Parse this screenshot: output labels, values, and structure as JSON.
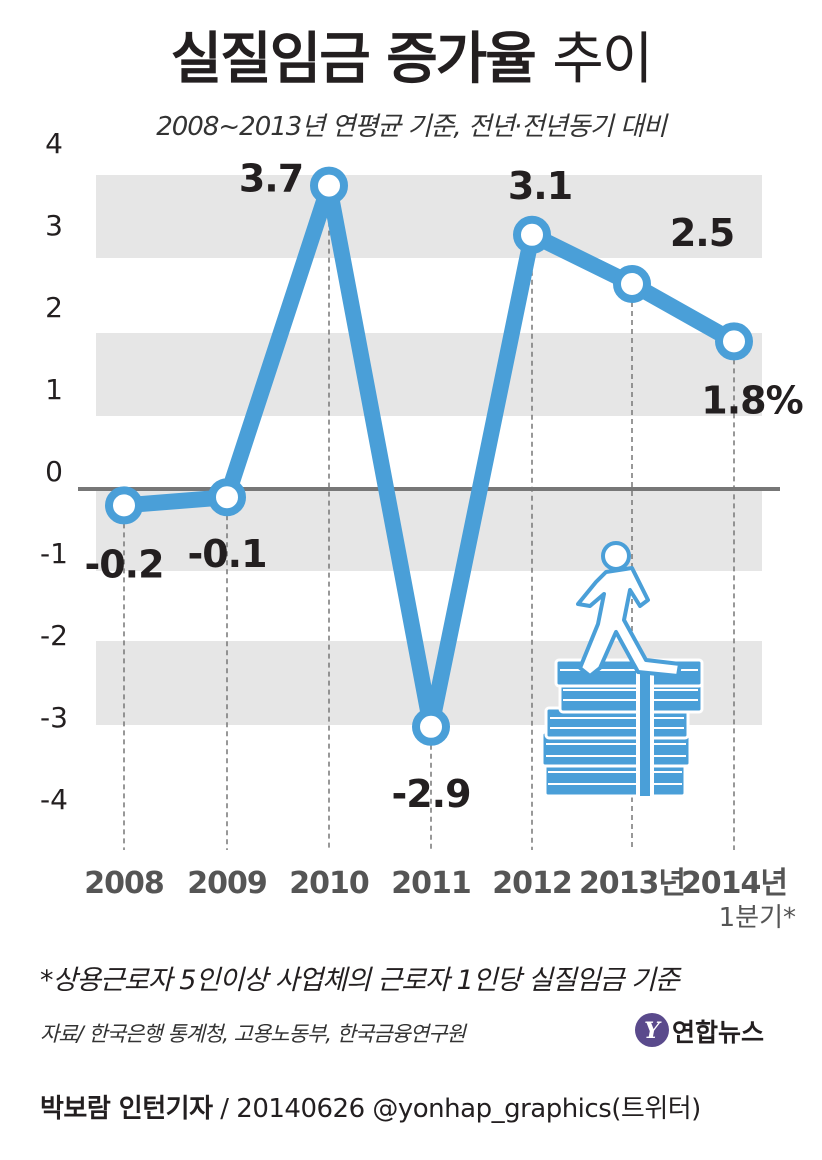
{
  "title": {
    "bold": "실질임금 증가율",
    "light": "추이"
  },
  "subtitle": "2008~2013년 연평균 기준, 전년·전년동기 대비",
  "chart_data": {
    "type": "line",
    "categories": [
      "2008",
      "2009",
      "2010",
      "2011",
      "2012",
      "2013년",
      "2014년"
    ],
    "category_sublabel": "1분기*",
    "values": [
      -0.2,
      -0.1,
      3.7,
      -2.9,
      3.1,
      2.5,
      1.8
    ],
    "data_labels": [
      "-0.2",
      "-0.1",
      "3.7",
      "-2.9",
      "3.1",
      "2.5",
      "1.8%"
    ],
    "y_ticks": [
      "4",
      "3",
      "2",
      "1",
      "0",
      "-1",
      "-2",
      "-3",
      "-4"
    ],
    "ylim": [
      -4,
      4
    ],
    "line_color": "#4a9fd8",
    "band_color": "#e6e6e6",
    "zero_line_color": "#777777"
  },
  "footnote": "*상용근로자 5인이상 사업체의 근로자 1인당 실질임금 기준",
  "source": "자료/ 한국은행 통계청, 고용노동부, 한국금융연구원",
  "logo": {
    "text": "연합뉴스",
    "mark": "Y"
  },
  "byline": {
    "name": "박보람 인턴기자",
    "rest": " / 20140626 @yonhap_graphics(트위터)"
  }
}
